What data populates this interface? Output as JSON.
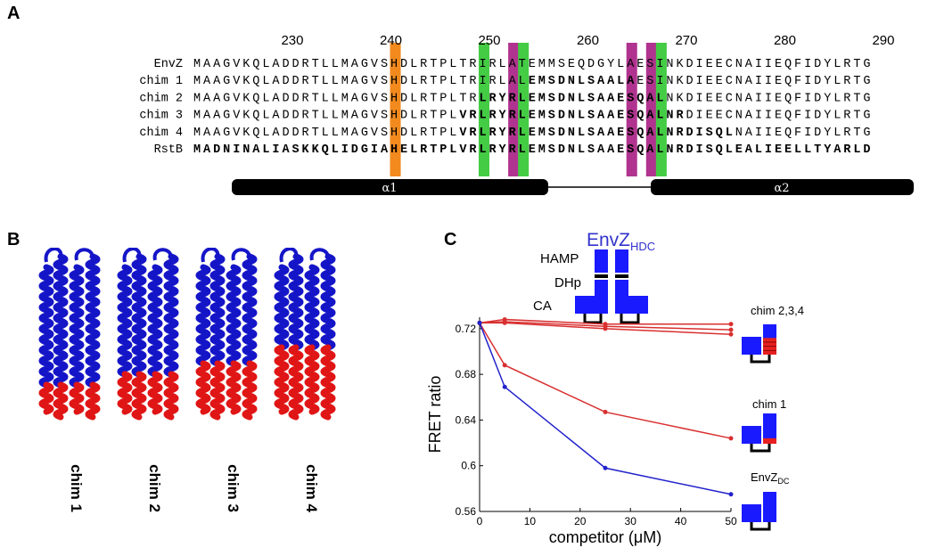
{
  "panels": {
    "a": "A",
    "b": "B",
    "c": "C"
  },
  "alignment": {
    "ruler": [
      "230",
      "240",
      "250",
      "260",
      "270",
      "280",
      "290"
    ],
    "rows": [
      {
        "name": "EnvZ",
        "seq": "MAAGVKQLADDRTLLMAGVSHDLRTPLTRIRLATEMMSEQDGYLAESINKDIEECNAIIEQFIDYLRTG",
        "bold": []
      },
      {
        "name": "chim 1",
        "seq": "MAAGVKQLADDRTLLMAGVSHDLRTPLTRIRLALEMSDNLSAALAESINKDIEECNAIIEQFIDYLRTG",
        "bold": [
          [
            34,
            45
          ]
        ]
      },
      {
        "name": "chim 2",
        "seq": "MAAGVKQLADDRTLLMAGVSHDLRTPLTRLRYRLEMSDNLSAAESQALNKDIEECNAIIEQFIDYLRTG",
        "bold": [
          [
            29,
            48
          ]
        ]
      },
      {
        "name": "chim 3",
        "seq": "MAAGVKQLADDRTLLMAGVSHDLRTPLVRLRYRLEMSDNLSAAESQALNRDIEECNAIIEQFIDYLRTG",
        "bold": [
          [
            27,
            50
          ]
        ]
      },
      {
        "name": "chim 4",
        "seq": "MAAGVKQLADDRTLLMAGVSHDLRTPLVRLRYRLEMSDNLSAAESQALNRDISQLNAIIEQFIDYLRTG",
        "bold": [
          [
            27,
            55
          ]
        ]
      },
      {
        "name": "RstB",
        "seq": "MADNINALIASKKQLIDGIAHELRTPLVRLRYRLEMSDNLSAAESQALNRDISQLEALIEELLTYARLD",
        "bold": [
          [
            0,
            69
          ]
        ]
      }
    ],
    "highlights": [
      {
        "col": 20,
        "color": "#f28a1e"
      },
      {
        "col": 29,
        "color": "#44cc44"
      },
      {
        "col": 32,
        "color": "#b0348f"
      },
      {
        "col": 33,
        "color": "#44cc44"
      },
      {
        "col": 44,
        "color": "#b0348f"
      },
      {
        "col": 46,
        "color": "#b0348f"
      },
      {
        "col": 47,
        "color": "#44cc44"
      }
    ],
    "helices": [
      {
        "label": "α1"
      },
      {
        "label": "α2"
      }
    ]
  },
  "structures": [
    {
      "label": "chim 1",
      "red_fraction": 0.18
    },
    {
      "label": "chim 2",
      "red_fraction": 0.25
    },
    {
      "label": "chim 3",
      "red_fraction": 0.32
    },
    {
      "label": "chim 4",
      "red_fraction": 0.4
    }
  ],
  "schematic": {
    "title_main": "EnvZ",
    "title_sub": "HDC",
    "domains": [
      "HAMP",
      "DHp",
      "CA"
    ],
    "colors": {
      "domain": "#1a1aff",
      "chimera": "#e62020",
      "link": "#000000",
      "title": "#3333cc"
    }
  },
  "chart_data": {
    "type": "line",
    "xlabel": "competitor (μM)",
    "ylabel": "FRET ratio",
    "xlim": [
      0,
      50
    ],
    "ylim": [
      0.56,
      0.73
    ],
    "xticks": [
      "0",
      "10",
      "20",
      "30",
      "40",
      "50"
    ],
    "yticks": [
      "0.56",
      "0.6",
      "0.64",
      "0.68",
      "0.72"
    ],
    "x": [
      0,
      5,
      25,
      50
    ],
    "series": [
      {
        "name": "chim 2,3,4",
        "values": [
          0.725,
          0.728,
          0.724,
          0.724
        ],
        "color": "#d93030"
      },
      {
        "name": "",
        "values": [
          0.725,
          0.726,
          0.722,
          0.719
        ],
        "color": "#d93030"
      },
      {
        "name": "",
        "values": [
          0.725,
          0.725,
          0.72,
          0.715
        ],
        "color": "#d93030"
      },
      {
        "name": "chim 1",
        "values": [
          0.725,
          0.688,
          0.647,
          0.624
        ],
        "color": "#d93030"
      },
      {
        "name": "EnvZ",
        "name_sub": "DC",
        "values": [
          0.725,
          0.669,
          0.598,
          0.575
        ],
        "color": "#2222cc"
      }
    ],
    "grid": false
  }
}
